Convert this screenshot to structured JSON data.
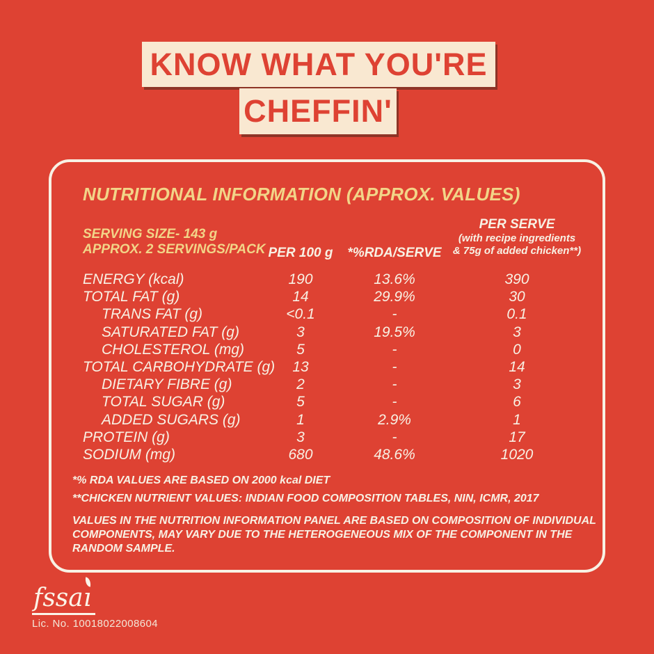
{
  "title": {
    "line1": "KNOW WHAT YOU'RE",
    "line2": "CHEFFIN'"
  },
  "panel": {
    "heading": "NUTRITIONAL INFORMATION (APPROX. VALUES)",
    "serving_line1": "SERVING SIZE- 143 g",
    "serving_line2": "APPROX. 2 SERVINGS/PACK",
    "columns": {
      "per100": "PER 100 g",
      "rda": "*%RDA/SERVE",
      "per_serve_title": "PER SERVE",
      "per_serve_sub1": "(with recipe ingredients",
      "per_serve_sub2": "& 75g of added chicken**)"
    },
    "rows": [
      {
        "label": "ENERGY (kcal)",
        "per100": "190",
        "rda": "13.6%",
        "serve": "390"
      },
      {
        "label": "TOTAL FAT (g)",
        "per100": "14",
        "rda": "29.9%",
        "serve": "30"
      },
      {
        "label": "TRANS FAT (g)",
        "per100": "<0.1",
        "rda": "-",
        "serve": "0.1"
      },
      {
        "label": "SATURATED FAT (g)",
        "per100": "3",
        "rda": "19.5%",
        "serve": "3"
      },
      {
        "label": "CHOLESTEROL (mg)",
        "per100": "5",
        "rda": "-",
        "serve": "0"
      },
      {
        "label": "TOTAL CARBOHYDRATE (g)",
        "per100": "13",
        "rda": "-",
        "serve": "14"
      },
      {
        "label": "DIETARY FIBRE (g)",
        "per100": "2",
        "rda": "-",
        "serve": "3"
      },
      {
        "label": "TOTAL SUGAR (g)",
        "per100": "5",
        "rda": "-",
        "serve": "6"
      },
      {
        "label": "ADDED SUGARS (g)",
        "per100": "1",
        "rda": "2.9%",
        "serve": "1"
      },
      {
        "label": "PROTEIN (g)",
        "per100": "3",
        "rda": "-",
        "serve": "17"
      },
      {
        "label": "SODIUM (mg)",
        "per100": "680",
        "rda": "48.6%",
        "serve": "1020"
      }
    ],
    "footnote1": "*% RDA VALUES ARE BASED ON 2000 kcal DIET",
    "footnote2": "**CHICKEN NUTRIENT VALUES: INDIAN FOOD COMPOSITION TABLES, NIN, ICMR, 2017",
    "disclaimer": "VALUES IN THE NUTRITION INFORMATION PANEL ARE BASED ON COMPOSITION OF INDIVIDUAL COMPONENTS, MAY VARY DUE TO THE HETEROGENEOUS MIX OF THE COMPONENT IN THE RANDOM SAMPLE."
  },
  "footer": {
    "fssai_part1": "fssa",
    "fssai_part2": "ı",
    "license": "Lic. No. 10018022008604"
  },
  "colors": {
    "background": "#DE4233",
    "banner_cream": "#F9E8D1",
    "heading_gold": "#F2D588",
    "text_off_white": "#F8F1E4",
    "banner_shadow": "#8E3426"
  }
}
